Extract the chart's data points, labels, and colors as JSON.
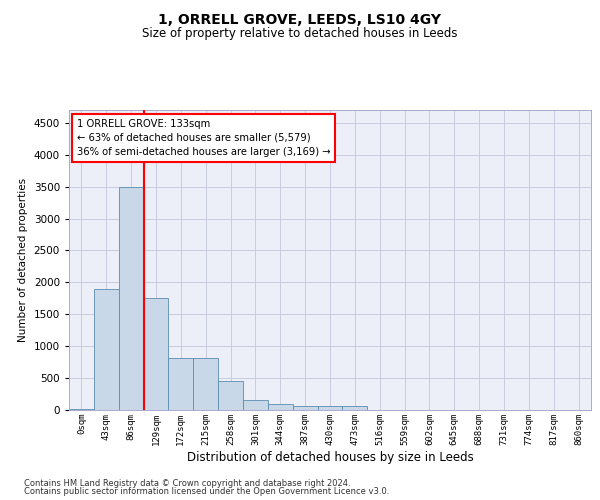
{
  "title": "1, ORRELL GROVE, LEEDS, LS10 4GY",
  "subtitle": "Size of property relative to detached houses in Leeds",
  "xlabel": "Distribution of detached houses by size in Leeds",
  "ylabel": "Number of detached properties",
  "bar_labels": [
    "0sqm",
    "43sqm",
    "86sqm",
    "129sqm",
    "172sqm",
    "215sqm",
    "258sqm",
    "301sqm",
    "344sqm",
    "387sqm",
    "430sqm",
    "473sqm",
    "516sqm",
    "559sqm",
    "602sqm",
    "645sqm",
    "688sqm",
    "731sqm",
    "774sqm",
    "817sqm",
    "860sqm"
  ],
  "bar_values": [
    10,
    1900,
    3500,
    1750,
    820,
    820,
    450,
    155,
    100,
    70,
    60,
    55,
    0,
    0,
    0,
    0,
    0,
    0,
    0,
    0,
    0
  ],
  "bar_color": "#c8d8e8",
  "bar_edgecolor": "#5b8db0",
  "property_line_x": 2.5,
  "annotation_text": "1 ORRELL GROVE: 133sqm\n← 63% of detached houses are smaller (5,579)\n36% of semi-detached houses are larger (3,169) →",
  "annotation_box_color": "white",
  "annotation_box_edgecolor": "red",
  "vline_color": "red",
  "ylim": [
    0,
    4700
  ],
  "yticks": [
    0,
    500,
    1000,
    1500,
    2000,
    2500,
    3000,
    3500,
    4000,
    4500
  ],
  "grid_color": "#c8cce0",
  "bg_color": "#eceef8",
  "footer_line1": "Contains HM Land Registry data © Crown copyright and database right 2024.",
  "footer_line2": "Contains public sector information licensed under the Open Government Licence v3.0."
}
